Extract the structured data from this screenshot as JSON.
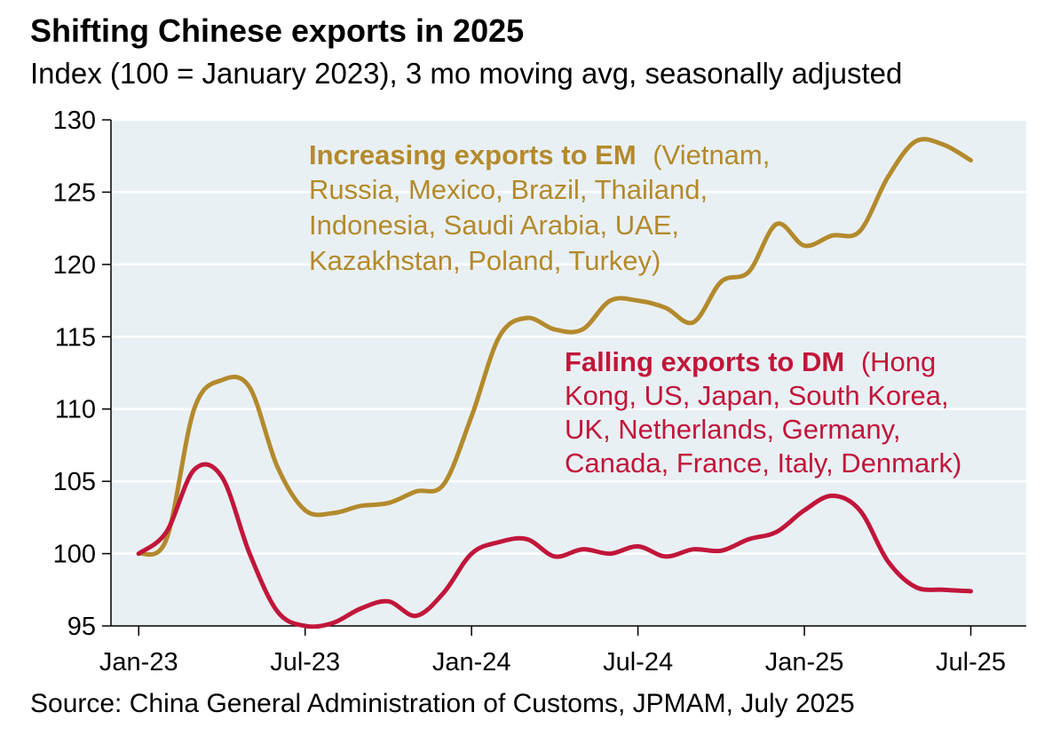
{
  "chart_data": {
    "type": "line",
    "title": "Shifting Chinese exports in 2025",
    "subtitle": "Index (100 = January 2023), 3 mo moving avg, seasonally adjusted",
    "source": "Source: China General Administration of Customs, JPMAM, July 2025",
    "xlabel": "",
    "ylabel": "",
    "ylim": [
      95,
      130
    ],
    "y_ticks": [
      "95",
      "100",
      "105",
      "110",
      "115",
      "120",
      "125",
      "130"
    ],
    "x_ticks": [
      "Jan-23",
      "Jul-23",
      "Jan-24",
      "Jul-24",
      "Jan-25",
      "Jul-25"
    ],
    "x_tick_months": [
      0,
      6,
      12,
      18,
      24,
      30
    ],
    "x_range_months": [
      -1,
      32
    ],
    "grid": true,
    "background_color": "#e9f0f4",
    "series": [
      {
        "name": "Increasing exports to EM",
        "color": "#b38a2c",
        "months": [
          0,
          1,
          2,
          3,
          4,
          5,
          6,
          7,
          8,
          9,
          10,
          11,
          12,
          13,
          14,
          15,
          16,
          17,
          18,
          19,
          20,
          21,
          22,
          23,
          24,
          25,
          26,
          27,
          28,
          29,
          30
        ],
        "values": [
          100,
          101,
          110,
          112,
          111.5,
          106,
          103,
          102.8,
          103.3,
          103.5,
          104.3,
          104.8,
          109.5,
          115,
          116.3,
          115.5,
          115.5,
          117.5,
          117.5,
          117,
          116,
          118.8,
          119.5,
          122.8,
          121.3,
          122,
          122.3,
          126,
          128.5,
          128.3,
          127.2
        ]
      },
      {
        "name": "Falling exports to DM",
        "color": "#c1163a",
        "months": [
          0,
          1,
          2,
          3,
          4,
          5,
          6,
          7,
          8,
          9,
          10,
          11,
          12,
          13,
          14,
          15,
          16,
          17,
          18,
          19,
          20,
          21,
          22,
          23,
          24,
          25,
          26,
          27,
          28,
          29,
          30
        ],
        "values": [
          100,
          101.5,
          105.8,
          105.3,
          100,
          96,
          95,
          95.2,
          96.2,
          96.7,
          95.7,
          97.3,
          100,
          100.8,
          101,
          99.8,
          100.3,
          100,
          100.5,
          99.8,
          100.3,
          100.2,
          101,
          101.5,
          103,
          104,
          103,
          99.5,
          97.7,
          97.5,
          97.4
        ]
      }
    ],
    "annotations": [
      {
        "series": 0,
        "bold": "Increasing exports to EM",
        "lines": [
          "(Vietnam,",
          "Russia, Mexico, Brazil, Thailand,",
          "Indonesia, Saudi Arabia, UAE,",
          "Kazakhstan, Poland, Turkey)"
        ]
      },
      {
        "series": 1,
        "bold": "Falling exports to DM",
        "lines": [
          "(Hong",
          "Kong, US, Japan, South Korea,",
          "UK, Netherlands, Germany,",
          "Canada, France, Italy, Denmark)"
        ]
      }
    ]
  }
}
